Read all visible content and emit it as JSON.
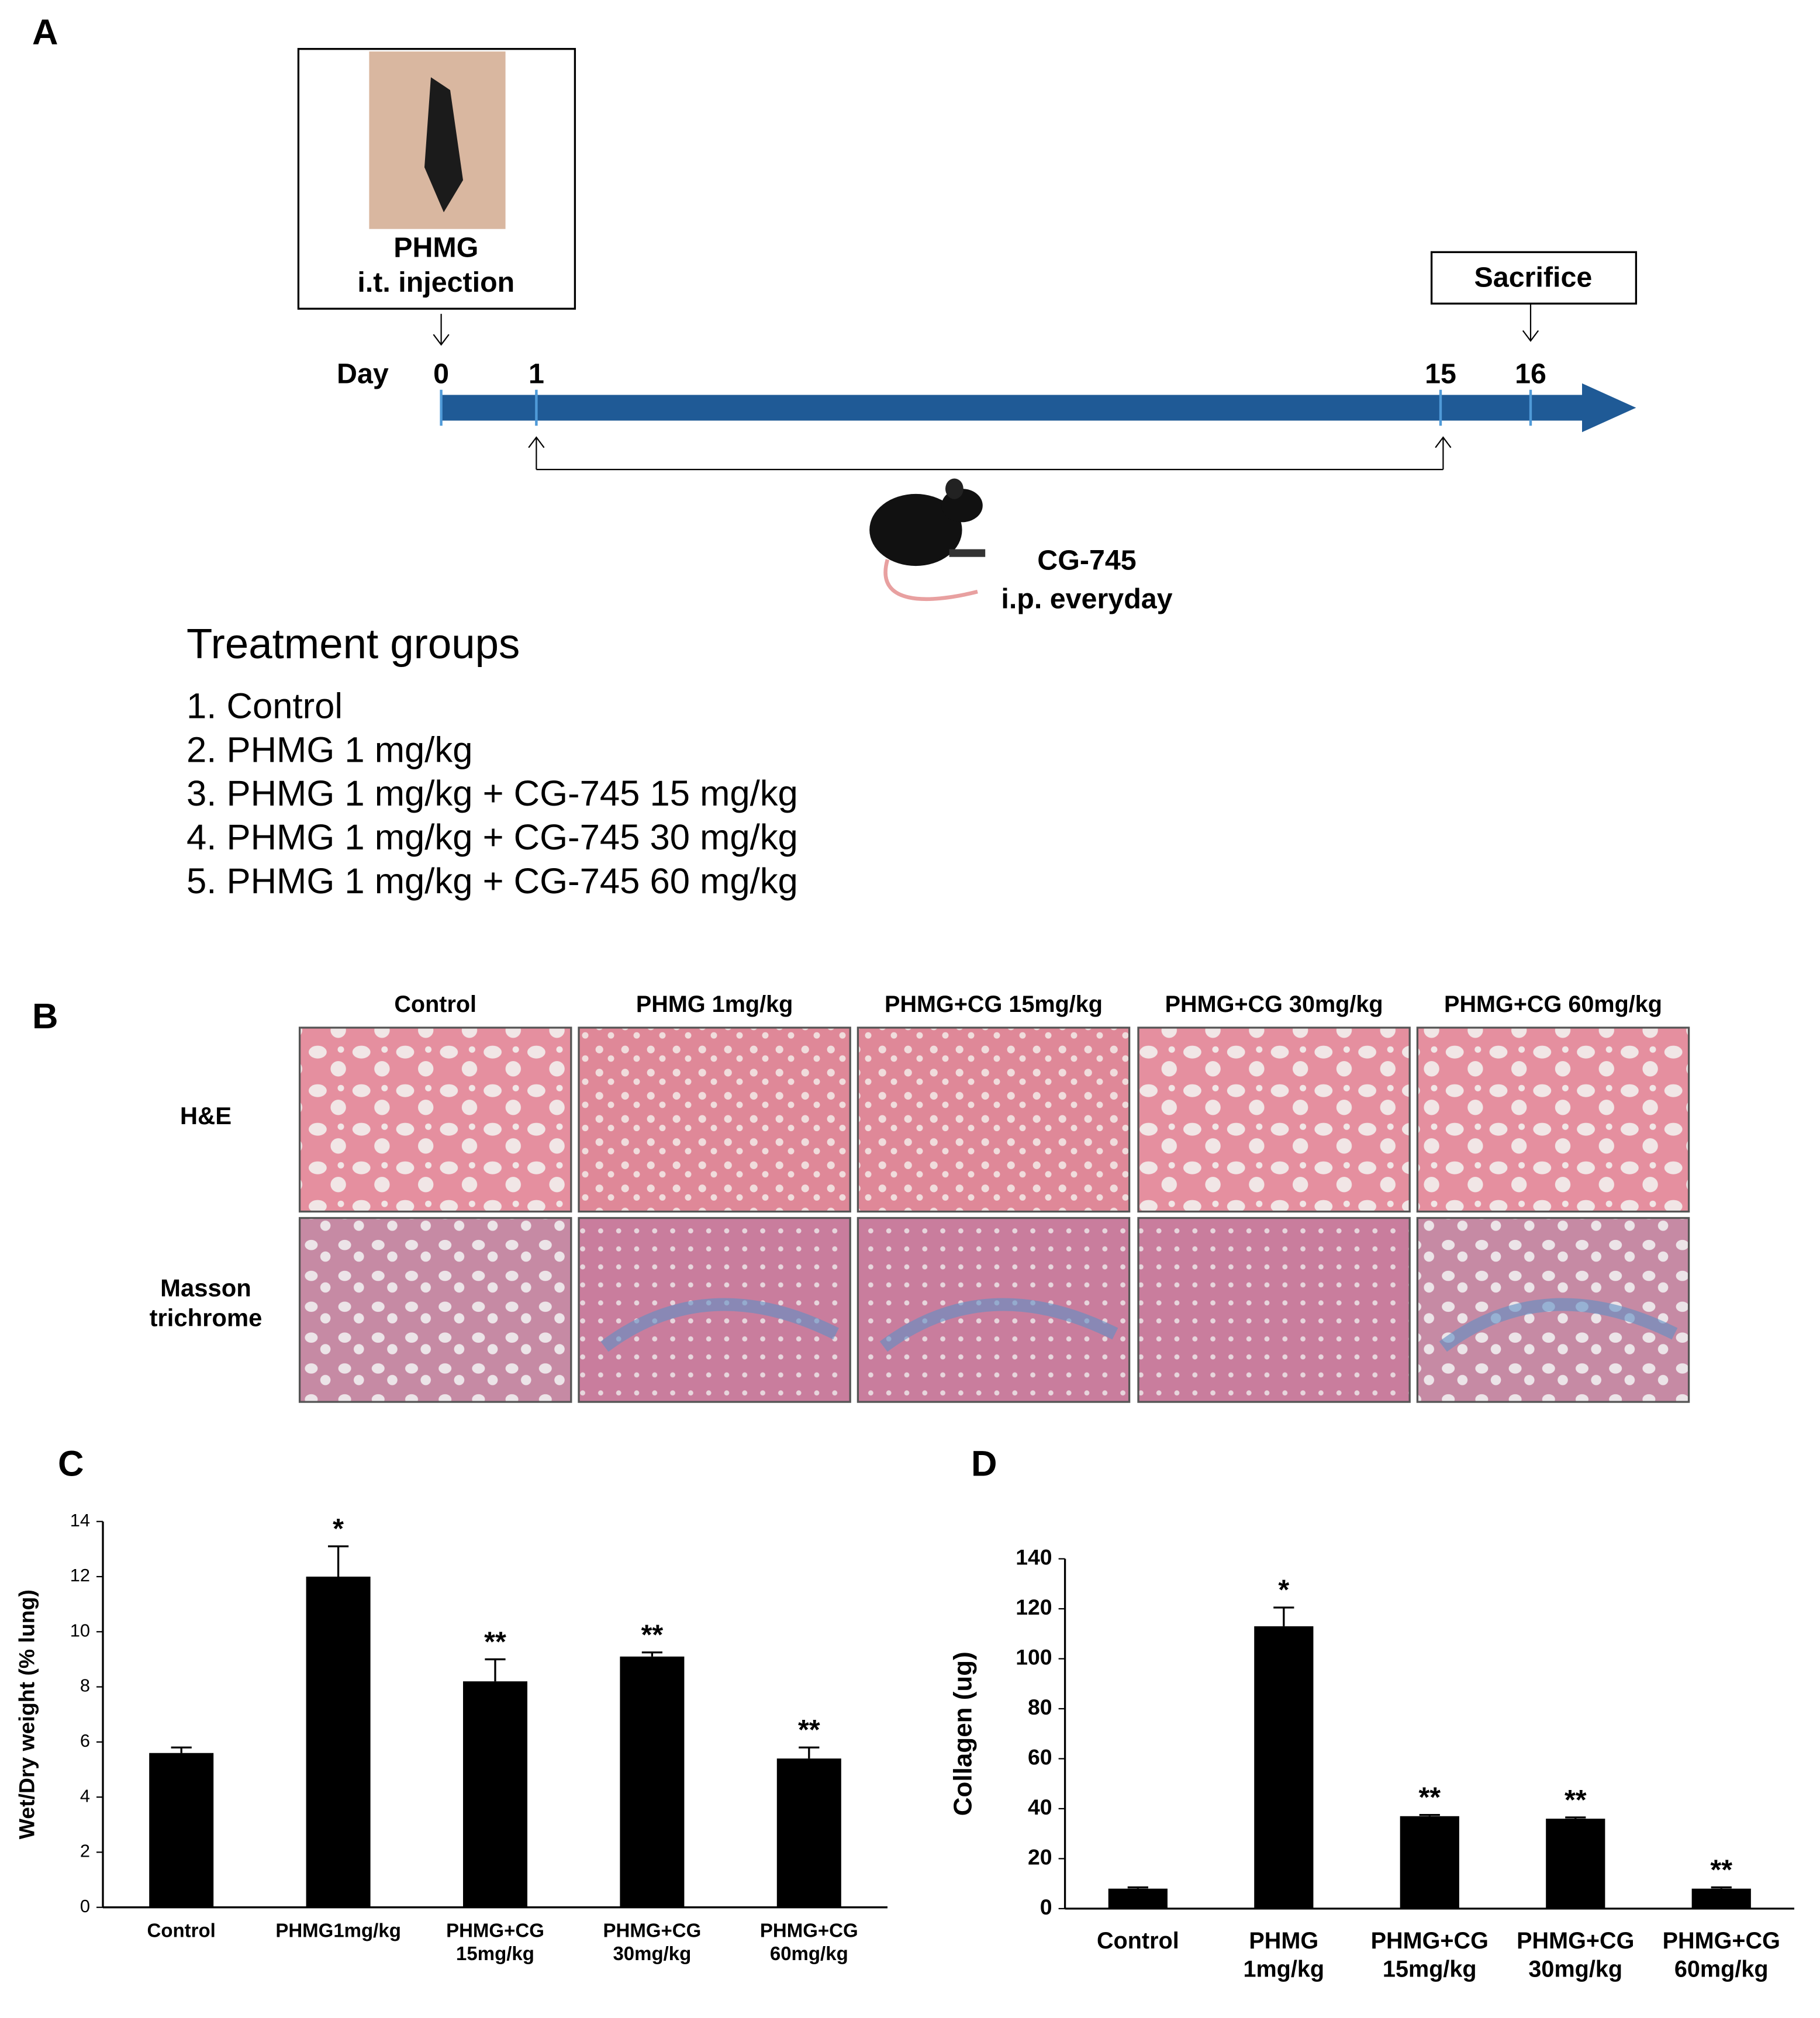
{
  "panel_a": {
    "label": "A",
    "injection_box": {
      "line1": "PHMG",
      "line2": "i.t. injection"
    },
    "sacrifice": "Sacrifice",
    "day_label": "Day",
    "days": [
      0,
      1,
      15,
      16
    ],
    "treatment": {
      "line1": "CG-745",
      "line2": "i.p. everyday"
    },
    "groups_title": "Treatment groups",
    "groups": [
      "1. Control",
      "2. PHMG 1 mg/kg",
      "3. PHMG 1 mg/kg + CG-745 15 mg/kg",
      "4. PHMG 1 mg/kg + CG-745 30 mg/kg",
      "5. PHMG 1 mg/kg + CG-745 60 mg/kg"
    ]
  },
  "panel_b": {
    "label": "B",
    "columns": [
      "Control",
      "PHMG 1mg/kg",
      "PHMG+CG 15mg/kg",
      "PHMG+CG 30mg/kg",
      "PHMG+CG 60mg/kg"
    ],
    "rows": [
      "H&E",
      "Masson\ntrichrome"
    ]
  },
  "chart_data": [
    {
      "type": "bar",
      "panel_label": "C",
      "ylabel": "Wet/Dry weight (% lung)",
      "categories": [
        "Control",
        "PHMG1mg/kg",
        "PHMG+CG\n15mg/kg",
        "PHMG+CG\n30mg/kg",
        "PHMG+CG\n60mg/kg"
      ],
      "values": [
        5.6,
        12.0,
        8.2,
        9.1,
        5.4
      ],
      "errors": [
        0.2,
        1.1,
        0.8,
        0.15,
        0.4
      ],
      "annotations": [
        null,
        "*",
        "**",
        "**",
        "**"
      ],
      "color": "#000000",
      "ylim": [
        0,
        14
      ],
      "yticks": [
        0,
        2,
        4,
        6,
        8,
        10,
        12,
        14
      ]
    },
    {
      "type": "bar",
      "panel_label": "D",
      "ylabel": "Collagen (ug)",
      "categories": [
        "Control",
        "PHMG\n1mg/kg",
        "PHMG+CG\n15mg/kg",
        "PHMG+CG\n30mg/kg",
        "PHMG+CG\n60mg/kg"
      ],
      "values": [
        8,
        113,
        37,
        36,
        8
      ],
      "errors": [
        0.5,
        7.5,
        0.5,
        0.5,
        0.5
      ],
      "annotations": [
        null,
        "*",
        "**",
        "**",
        "**"
      ],
      "color": "#000000",
      "ylim": [
        0,
        140
      ],
      "yticks": [
        0,
        20,
        40,
        60,
        80,
        100,
        120,
        140
      ]
    }
  ]
}
